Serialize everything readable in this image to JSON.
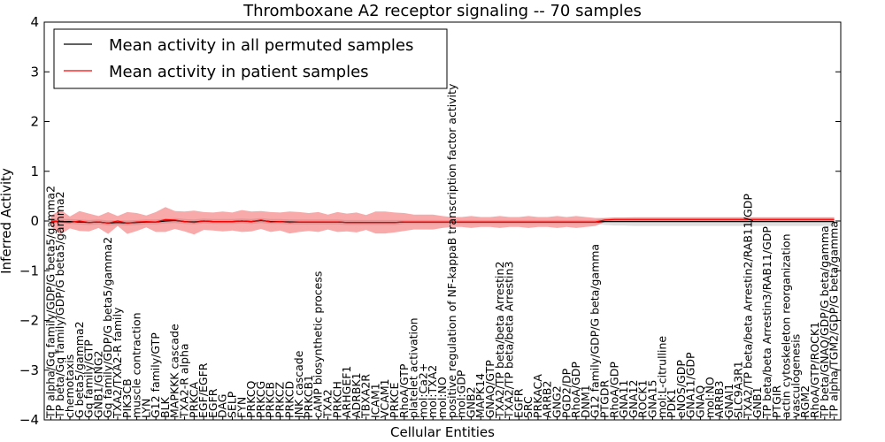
{
  "chart_data": {
    "type": "line",
    "title": "Thromboxane A2 receptor signaling -- 70 samples",
    "xlabel": "Cellular Entities",
    "ylabel": "Inferred Activity",
    "ylim": [
      -4,
      4
    ],
    "yticks": [
      -4,
      -3,
      -2,
      -1,
      0,
      1,
      2,
      3,
      4
    ],
    "legend_position": "top-left",
    "categories": [
      "TP alpha/Gq family/GDP/G beta5/gamma2",
      "TP beta/Gq family/GDP/G beta5/gamma2",
      "chemotaxis",
      "G beta5/gamma2",
      "Gq family/GTP",
      "GNB1/GNG2",
      "Gq family/GDP/G beta5/gamma2",
      "TXA2/TXA2-R family",
      "PIK3CB",
      "muscle contraction",
      "LYN",
      "G12 family/GTP",
      "BLK",
      "MAPKKK cascade",
      "TXA2-R alpha",
      "PRKCA",
      "EGF/EGFR",
      "EGFR",
      "DAG",
      "SELP",
      "FYN",
      "PRKCQ",
      "PRKCG",
      "PRKCB",
      "PRKCZ",
      "PRKCD",
      "JNK cascade",
      "PRKCB1",
      "cAMP biosynthetic process",
      "TXA2",
      "PRKCH",
      "ARHGEF1",
      "ADRBK1",
      "TBXA2R",
      "ICAM1",
      "VCAM1",
      "PRKCE",
      "RhoA/GTP",
      "platelet activation",
      "mol:Ca2+",
      "mol:TXA2",
      "mol:NO",
      "positive regulation of NF-kappaB transcription factor activity",
      "mol:GDP",
      "GNB2",
      "MAPK14",
      "GNAQ/GTP",
      "TXA2/TP beta/beta Arrestin2",
      "TXA2/TP beta/beta Arrestin3",
      "EGFR",
      "SRC",
      "PRKACA",
      "ARRB2",
      "GNG2",
      "PGD2/DP",
      "RhoA/GDP",
      "DNM1",
      "G12 family/GDP/G beta/gamma",
      "PTGDR",
      "RhoA/GDP",
      "GNA11",
      "GNA12",
      "ROCK1",
      "GNA15",
      "mol:L-citrulline",
      "PDK1",
      "eNOS/GDP",
      "GNA11/GDP",
      "GNAQ",
      "mol:NO",
      "ARRB3",
      "GNAI1",
      "SLC9A3R1",
      "TXA2/TP beta/beta Arrestin2/RAB11/GDP",
      "GNB1",
      "TP beta/beta Arrestin3/RAB11/GDP",
      "PTGIR",
      "actin cytoskeleton reorganization",
      "vasculogenesis",
      "RGM2",
      "RhoA/GTP/ROCK1",
      "TP beta/GNAQ/GDP/G beta/gamma",
      "TP alpha/TGM2/GDP/G beta/gamma"
    ],
    "series": [
      {
        "name": "Mean activity in all permuted samples",
        "color": "#000000",
        "values": [
          0,
          -0.01,
          -0.01,
          -0.02,
          -0.03,
          -0.02,
          -0.04,
          -0.03,
          -0.04,
          -0.03,
          -0.02,
          -0.02,
          0.0,
          0.01,
          -0.01,
          -0.02,
          0.0,
          -0.01,
          -0.01,
          -0.01,
          0.0,
          -0.01,
          0.01,
          -0.01,
          -0.01,
          -0.02,
          -0.02,
          -0.02,
          -0.02,
          -0.02,
          -0.02,
          -0.03,
          -0.03,
          -0.03,
          -0.03,
          -0.03,
          -0.03,
          -0.02,
          -0.02,
          -0.02,
          -0.02,
          -0.02,
          -0.02,
          -0.02,
          -0.02,
          -0.02,
          -0.02,
          -0.02,
          -0.02,
          -0.02,
          -0.02,
          -0.02,
          -0.02,
          -0.02,
          -0.02,
          -0.02,
          -0.02,
          -0.02,
          -0.01,
          -0.01,
          -0.01,
          -0.01,
          -0.01,
          -0.01,
          -0.01,
          -0.01,
          -0.01,
          -0.01,
          -0.01,
          -0.01,
          -0.01,
          -0.01,
          -0.01,
          -0.01,
          -0.01,
          -0.01,
          -0.01,
          -0.01,
          -0.01,
          -0.01,
          -0.01,
          -0.01,
          -0.01
        ],
        "spread": [
          0.05,
          0.05,
          0.05,
          0.05,
          0.05,
          0.05,
          0.05,
          0.05,
          0.05,
          0.05,
          0.05,
          0.05,
          0.05,
          0.05,
          0.05,
          0.05,
          0.05,
          0.05,
          0.05,
          0.05,
          0.05,
          0.05,
          0.05,
          0.05,
          0.05,
          0.05,
          0.05,
          0.05,
          0.05,
          0.05,
          0.05,
          0.05,
          0.05,
          0.05,
          0.05,
          0.05,
          0.05,
          0.04,
          0.04,
          0.04,
          0.04,
          0.04,
          0.04,
          0.04,
          0.04,
          0.04,
          0.04,
          0.04,
          0.04,
          0.04,
          0.04,
          0.04,
          0.04,
          0.04,
          0.04,
          0.04,
          0.04,
          0.04,
          0.07,
          0.08,
          0.08,
          0.09,
          0.09,
          0.09,
          0.09,
          0.09,
          0.09,
          0.09,
          0.09,
          0.09,
          0.09,
          0.09,
          0.09,
          0.09,
          0.09,
          0.09,
          0.09,
          0.09,
          0.09,
          0.09,
          0.09,
          0.09,
          0.09
        ]
      },
      {
        "name": "Mean activity in patient samples",
        "color": "#ff0000",
        "values": [
          0,
          -0.02,
          -0.03,
          0.0,
          -0.03,
          -0.02,
          -0.04,
          0.0,
          -0.04,
          -0.02,
          -0.01,
          -0.02,
          0.03,
          0.02,
          -0.01,
          -0.03,
          0.0,
          -0.01,
          -0.01,
          -0.01,
          0.0,
          -0.01,
          0.02,
          -0.02,
          -0.01,
          -0.03,
          -0.02,
          -0.02,
          -0.02,
          -0.02,
          -0.02,
          -0.03,
          -0.03,
          -0.03,
          -0.03,
          -0.03,
          -0.03,
          -0.02,
          -0.02,
          -0.02,
          -0.02,
          -0.02,
          -0.02,
          -0.02,
          -0.02,
          -0.02,
          -0.02,
          -0.02,
          -0.02,
          -0.02,
          -0.02,
          -0.02,
          -0.02,
          -0.02,
          -0.02,
          -0.02,
          -0.02,
          -0.02,
          0.02,
          0.03,
          0.03,
          0.03,
          0.03,
          0.03,
          0.03,
          0.03,
          0.03,
          0.03,
          0.03,
          0.03,
          0.03,
          0.03,
          0.03,
          0.03,
          0.03,
          0.03,
          0.03,
          0.03,
          0.03,
          0.03,
          0.03,
          0.03,
          0.03
        ],
        "spread": [
          0.1,
          0.25,
          0.12,
          0.2,
          0.18,
          0.12,
          0.22,
          0.1,
          0.22,
          0.18,
          0.12,
          0.2,
          0.25,
          0.18,
          0.2,
          0.24,
          0.18,
          0.18,
          0.2,
          0.18,
          0.22,
          0.2,
          0.18,
          0.2,
          0.18,
          0.22,
          0.2,
          0.18,
          0.2,
          0.15,
          0.2,
          0.18,
          0.2,
          0.15,
          0.22,
          0.22,
          0.2,
          0.18,
          0.15,
          0.15,
          0.15,
          0.12,
          0.1,
          0.1,
          0.12,
          0.1,
          0.1,
          0.12,
          0.1,
          0.1,
          0.12,
          0.1,
          0.1,
          0.12,
          0.1,
          0.12,
          0.1,
          0.08,
          0.04,
          0.04,
          0.04,
          0.04,
          0.04,
          0.04,
          0.04,
          0.04,
          0.04,
          0.04,
          0.04,
          0.04,
          0.04,
          0.04,
          0.04,
          0.04,
          0.04,
          0.04,
          0.04,
          0.04,
          0.04,
          0.04,
          0.04,
          0.04,
          0.04
        ]
      }
    ]
  }
}
